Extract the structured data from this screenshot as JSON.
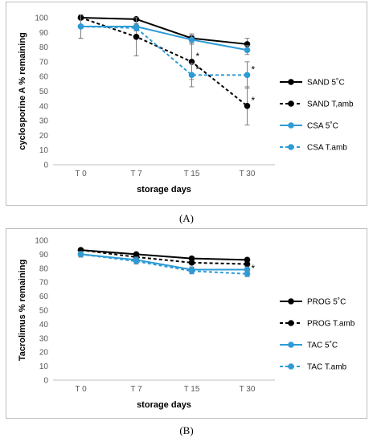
{
  "chart_data": [
    {
      "type": "line",
      "panel_label": "(A)",
      "xlabel": "storage days",
      "ylabel": "cyclosporine A % remaining",
      "categories": [
        "T 0",
        "T 7",
        "T 15",
        "T 30"
      ],
      "ylim": [
        0,
        100
      ],
      "yticks": [
        0,
        10,
        20,
        30,
        40,
        50,
        60,
        70,
        80,
        90,
        100
      ],
      "grid": false,
      "legend_position": "right",
      "series": [
        {
          "name": "SAND 5˚C",
          "values": [
            100,
            99,
            86,
            82
          ],
          "errors": [
            0,
            0,
            3,
            4
          ],
          "color": "#000000",
          "dashed": false
        },
        {
          "name": "SAND T,amb",
          "values": [
            100,
            87,
            70,
            40
          ],
          "errors": [
            0,
            13,
            12,
            13
          ],
          "color": "#000000",
          "dashed": true,
          "significant": [
            false,
            false,
            true,
            true
          ]
        },
        {
          "name": "CSA 5˚C",
          "values": [
            94,
            94,
            85,
            78
          ],
          "errors": [
            8,
            2,
            3,
            3
          ],
          "color": "#2e9bd6",
          "dashed": false
        },
        {
          "name": "CSA T.amb",
          "values": [
            94,
            93,
            61,
            61
          ],
          "errors": [
            8,
            2,
            8,
            9
          ],
          "color": "#2e9bd6",
          "dashed": true,
          "significant": [
            false,
            false,
            true,
            true
          ]
        }
      ],
      "annotation": "*"
    },
    {
      "type": "line",
      "panel_label": "(B)",
      "xlabel": "storage days",
      "ylabel": "Tacrolimus % remaining",
      "categories": [
        "T 0",
        "T 7",
        "T 15",
        "T 30"
      ],
      "ylim": [
        0,
        100
      ],
      "yticks": [
        0,
        10,
        20,
        30,
        40,
        50,
        60,
        70,
        80,
        90,
        100
      ],
      "grid": false,
      "legend_position": "right",
      "series": [
        {
          "name": "PROG 5˚C",
          "values": [
            93,
            90,
            87,
            86
          ],
          "errors": [
            1,
            1,
            1,
            1
          ],
          "color": "#000000",
          "dashed": false
        },
        {
          "name": "PROG T.amb",
          "values": [
            93,
            88,
            84,
            83
          ],
          "errors": [
            1,
            1,
            1,
            1
          ],
          "color": "#000000",
          "dashed": true
        },
        {
          "name": "TAC 5˚C",
          "values": [
            90,
            86,
            79,
            79
          ],
          "errors": [
            2,
            2,
            2,
            2
          ],
          "color": "#2e9bd6",
          "dashed": false
        },
        {
          "name": "TAC T.amb",
          "values": [
            90,
            85,
            78,
            76
          ],
          "errors": [
            2,
            2,
            2,
            2
          ],
          "color": "#2e9bd6",
          "dashed": true,
          "significant": [
            false,
            false,
            false,
            true
          ]
        }
      ],
      "annotation": "*"
    }
  ]
}
